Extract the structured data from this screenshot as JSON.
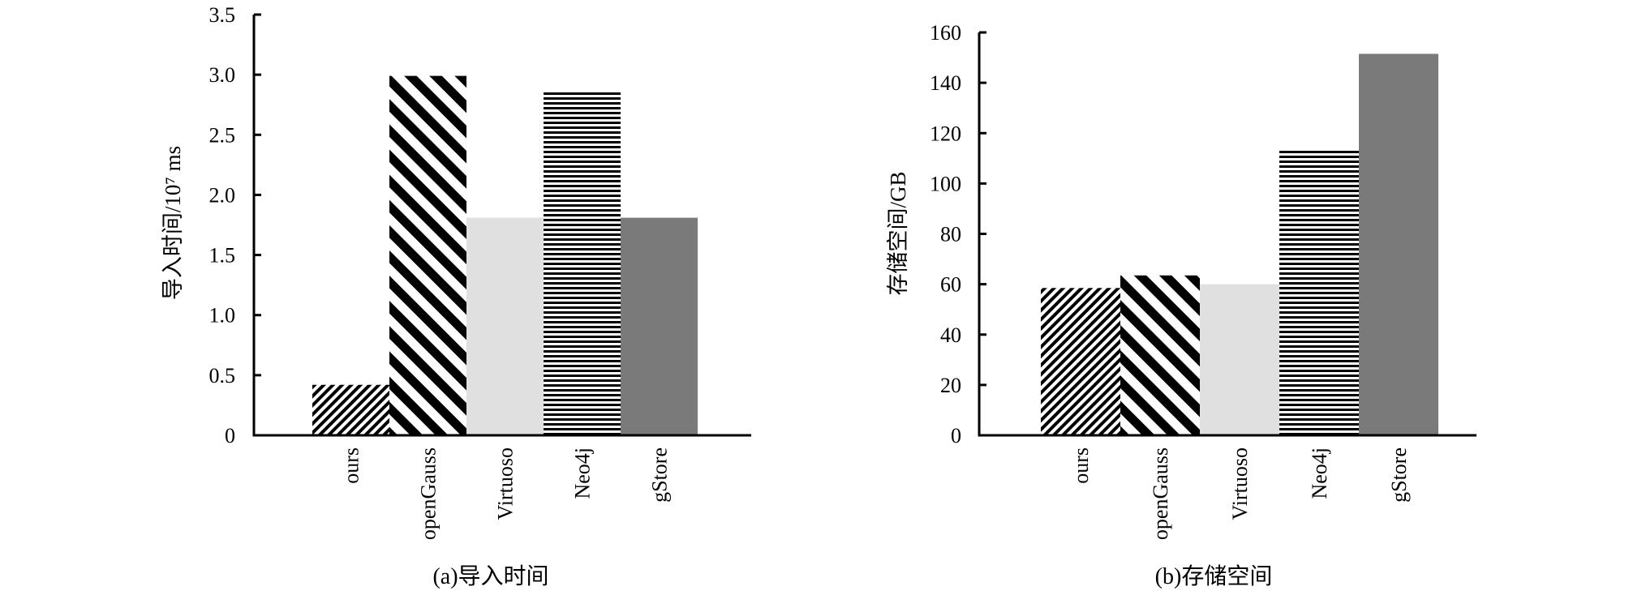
{
  "chart_data": [
    {
      "type": "bar",
      "caption": "(a)导入时间",
      "ylabel": "导入时间/10⁷ ms",
      "ylim": [
        0,
        3.5
      ],
      "y_ticks": [
        "0",
        "0.5",
        "1.0",
        "1.5",
        "2.0",
        "2.5",
        "3.0",
        "3.5"
      ],
      "categories": [
        "ours",
        "openGauss",
        "Virtuoso",
        "Neo4j",
        "gStore"
      ],
      "values": [
        0.42,
        2.99,
        1.81,
        2.86,
        1.81
      ],
      "grid": false
    },
    {
      "type": "bar",
      "caption": "(b)存储空间",
      "ylabel": "存储空间/GB",
      "ylim": [
        0,
        160
      ],
      "y_ticks": [
        "0",
        "20",
        "40",
        "60",
        "80",
        "100",
        "120",
        "140",
        "160"
      ],
      "categories": [
        "ours",
        "openGauss",
        "Virtuoso",
        "Neo4j",
        "gStore"
      ],
      "values": [
        58.5,
        63.5,
        60,
        113.5,
        151.5
      ],
      "grid": false
    }
  ],
  "bar_styles": [
    {
      "pattern": "fine-diagonal-hatch",
      "color": "#000000"
    },
    {
      "pattern": "wide-diagonal-stripes",
      "color": "#000000"
    },
    {
      "pattern": "solid",
      "color": "#e0e0e0"
    },
    {
      "pattern": "horizontal-lines",
      "color": "#000000"
    },
    {
      "pattern": "solid",
      "color": "#7a7a7a"
    }
  ]
}
